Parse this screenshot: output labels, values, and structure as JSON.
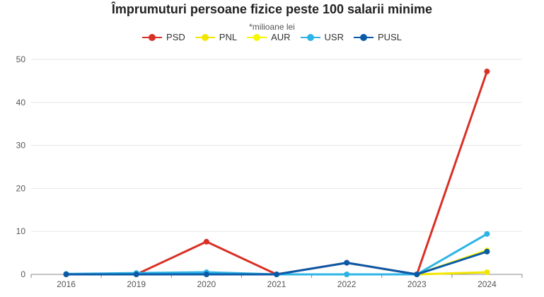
{
  "chart_data": {
    "type": "line",
    "title": "Împrumuturi persoane fizice peste 100 salarii minime",
    "subtitle": "*milioane lei",
    "categories": [
      "2016",
      "2019",
      "2020",
      "2021",
      "2022",
      "2023",
      "2024"
    ],
    "ylim": [
      0,
      50
    ],
    "yticks": [
      0,
      10,
      20,
      30,
      40,
      50
    ],
    "grid": true,
    "legend_position": "top-center",
    "series": [
      {
        "name": "PSD",
        "color": "#d93025",
        "values": [
          0,
          0,
          7.6,
          0,
          2.7,
          0,
          47.2
        ]
      },
      {
        "name": "PNL",
        "color": "#f2e600",
        "values": [
          0,
          0,
          0,
          0,
          0,
          0,
          0.5
        ]
      },
      {
        "name": "AUR",
        "color": "#f7f700",
        "values": [
          0,
          0,
          0,
          0,
          0,
          0,
          5.6
        ]
      },
      {
        "name": "USR",
        "color": "#2db4e6",
        "values": [
          0.1,
          0.3,
          0.5,
          0,
          0,
          0,
          9.4
        ]
      },
      {
        "name": "PUSL",
        "color": "#0b5aa8",
        "values": [
          0,
          0,
          0,
          0,
          2.7,
          0,
          5.3
        ]
      }
    ]
  }
}
